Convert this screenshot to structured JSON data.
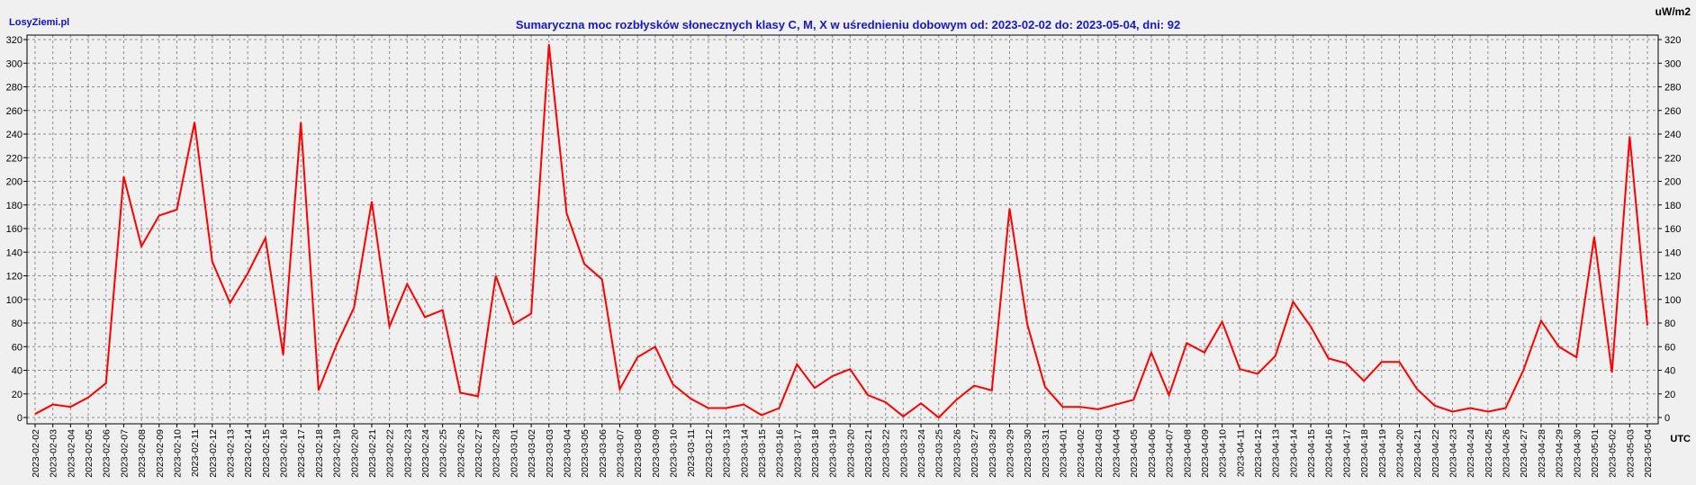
{
  "header": {
    "brand": "LosyZiemi.pl",
    "title": "Sumaryczna moc rozbłysków słonecznych klasy C, M, X w uśrednieniu dobowym od: 2023-02-02 do: 2023-05-04, dni: 92",
    "unit": "uW/m2",
    "xunit": "UTC"
  },
  "colors": {
    "line": "#ff0000",
    "grid": "#8c8c8c",
    "title": "#1818c8",
    "brand": "#1010c8",
    "plot_bg": "#f0f0f0"
  },
  "chart_data": {
    "type": "line",
    "title": "Sumaryczna moc rozbłysków słonecznych klasy C, M, X w uśrednieniu dobowym od: 2023-02-02 do: 2023-05-04, dni: 92",
    "ylabel": "uW/m2",
    "xlabel": "UTC",
    "ylim": [
      0,
      320
    ],
    "yticks": [
      0,
      20,
      40,
      60,
      80,
      100,
      120,
      140,
      160,
      180,
      200,
      220,
      240,
      260,
      280,
      300,
      320
    ],
    "grid": true,
    "x": [
      "2023-02-02",
      "2023-02-03",
      "2023-02-04",
      "2023-02-05",
      "2023-02-06",
      "2023-02-07",
      "2023-02-08",
      "2023-02-09",
      "2023-02-10",
      "2023-02-11",
      "2023-02-12",
      "2023-02-13",
      "2023-02-14",
      "2023-02-15",
      "2023-02-16",
      "2023-02-17",
      "2023-02-18",
      "2023-02-19",
      "2023-02-20",
      "2023-02-21",
      "2023-02-22",
      "2023-02-23",
      "2023-02-24",
      "2023-02-25",
      "2023-02-26",
      "2023-02-27",
      "2023-02-28",
      "2023-03-01",
      "2023-03-02",
      "2023-03-03",
      "2023-03-04",
      "2023-03-05",
      "2023-03-06",
      "2023-03-07",
      "2023-03-08",
      "2023-03-09",
      "2023-03-10",
      "2023-03-11",
      "2023-03-12",
      "2023-03-13",
      "2023-03-14",
      "2023-03-15",
      "2023-03-16",
      "2023-03-17",
      "2023-03-18",
      "2023-03-19",
      "2023-03-20",
      "2023-03-21",
      "2023-03-22",
      "2023-03-23",
      "2023-03-24",
      "2023-03-25",
      "2023-03-26",
      "2023-03-27",
      "2023-03-28",
      "2023-03-29",
      "2023-03-30",
      "2023-03-31",
      "2023-04-01",
      "2023-04-02",
      "2023-04-03",
      "2023-04-04",
      "2023-04-05",
      "2023-04-06",
      "2023-04-07",
      "2023-04-08",
      "2023-04-09",
      "2023-04-10",
      "2023-04-11",
      "2023-04-12",
      "2023-04-13",
      "2023-04-14",
      "2023-04-15",
      "2023-04-16",
      "2023-04-17",
      "2023-04-18",
      "2023-04-19",
      "2023-04-20",
      "2023-04-21",
      "2023-04-22",
      "2023-04-23",
      "2023-04-24",
      "2023-04-25",
      "2023-04-26",
      "2023-04-27",
      "2023-04-28",
      "2023-04-29",
      "2023-04-30",
      "2023-05-01",
      "2023-05-02",
      "2023-05-03",
      "2023-05-04"
    ],
    "series": [
      {
        "values": [
          3,
          11,
          9,
          17,
          29,
          204,
          145,
          171,
          176,
          250,
          132,
          97,
          122,
          152,
          53,
          250,
          23,
          61,
          93,
          183,
          77,
          113,
          85,
          91,
          21,
          18,
          120,
          79,
          88,
          316,
          173,
          130,
          117,
          24,
          51,
          60,
          28,
          16,
          8,
          8,
          11,
          2,
          8,
          45,
          25,
          35,
          41,
          19,
          13,
          1,
          12,
          0,
          15,
          27,
          23,
          177,
          79,
          26,
          9,
          9,
          7,
          11,
          15,
          55,
          19,
          63,
          55,
          81,
          41,
          37,
          52,
          98,
          77,
          50,
          46,
          31,
          47,
          47,
          24,
          10,
          5,
          8,
          5,
          8,
          40,
          82,
          60,
          51,
          153,
          38,
          238,
          78
        ]
      }
    ]
  }
}
